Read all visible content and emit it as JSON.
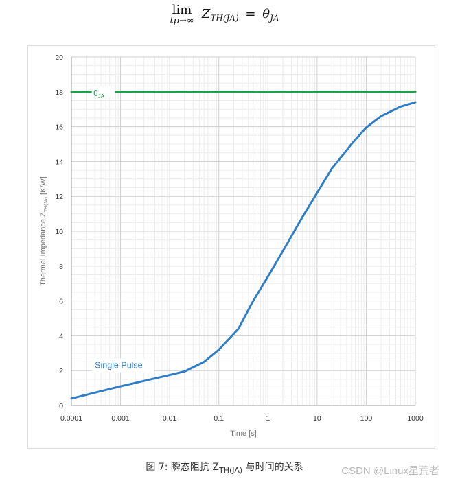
{
  "formula": {
    "lim": "lim",
    "lim_sub": "tp→∞",
    "lhs_var": "Z",
    "lhs_sub": "TH(JA)",
    "equals": "=",
    "rhs_var": "θ",
    "rhs_sub": "JA"
  },
  "caption": {
    "prefix": "图 7: 瞬态阻抗 Z",
    "sub": "TH(JA)",
    "suffix": " 与时间的关系"
  },
  "watermark": "CSDN @Linux星荒者",
  "chart_data": {
    "type": "line",
    "title": "",
    "xlabel": "Time [s]",
    "ylabel_main": "Thermal Impedance Z",
    "ylabel_sub": "TH(JA)",
    "ylabel_unit": " [K/W]",
    "xscale": "log",
    "xlim": [
      0.0001,
      1000
    ],
    "ylim": [
      0,
      20
    ],
    "xticks": [
      "0.0001",
      "0.001",
      "0.01",
      "0.1",
      "1",
      "10",
      "100",
      "1000"
    ],
    "yticks": [
      "0",
      "2",
      "4",
      "6",
      "8",
      "10",
      "12",
      "14",
      "16",
      "18",
      "20"
    ],
    "grid": true,
    "series": [
      {
        "name": "Single Pulse",
        "color": "#2e7dc6",
        "x": [
          0.0001,
          0.001,
          0.01,
          0.02,
          0.05,
          0.1,
          0.2,
          0.25,
          0.5,
          1,
          2,
          5,
          10,
          20,
          40,
          50,
          100,
          200,
          500,
          1000
        ],
        "y": [
          0.4,
          1.1,
          1.75,
          1.95,
          2.5,
          3.2,
          4.1,
          4.4,
          6.0,
          7.4,
          8.85,
          10.8,
          12.2,
          13.6,
          14.65,
          15.0,
          15.95,
          16.6,
          17.15,
          17.4
        ]
      },
      {
        "name": "θ",
        "name_sub": "JA",
        "color": "#1aa34a",
        "x": [
          0.0001,
          1000
        ],
        "y": [
          18,
          18
        ]
      }
    ],
    "annotations": [
      {
        "text": "Single Pulse",
        "x": 0.0003,
        "y": 2.15,
        "color": "#2e7dc6"
      }
    ]
  }
}
